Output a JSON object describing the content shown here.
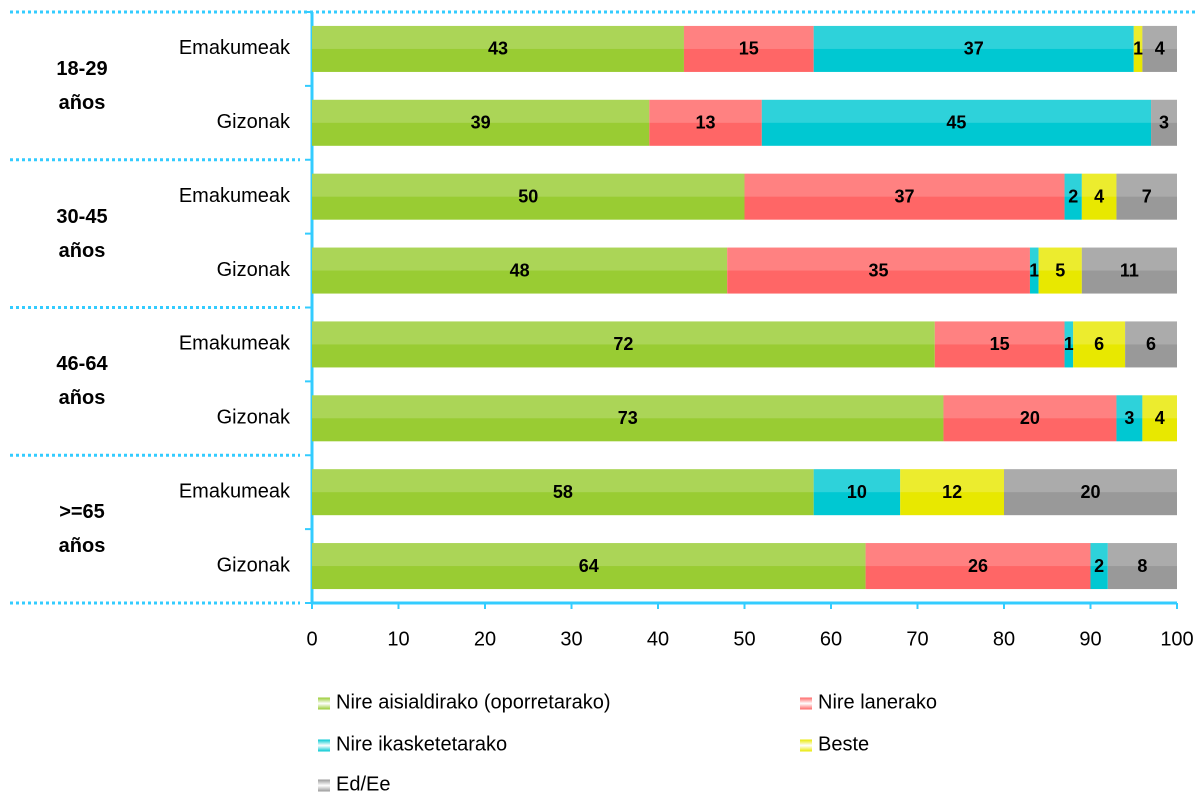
{
  "chart_data": {
    "type": "stacked-barh",
    "groups": [
      "18-29 años",
      "30-45 años",
      "46-64 años",
      ">=65 años"
    ],
    "categories": [
      "Emakumeak",
      "Gizonak",
      "Emakumeak",
      "Gizonak",
      "Emakumeak",
      "Gizonak",
      "Emakumeak",
      "Gizonak"
    ],
    "series": [
      {
        "name": "Nire aisialdirako (oporretarako)",
        "color": "#99cc33",
        "values": [
          43,
          39,
          50,
          48,
          72,
          73,
          58,
          64
        ]
      },
      {
        "name": "Nire lanerako",
        "color": "#ff6666",
        "values": [
          15,
          13,
          37,
          35,
          15,
          20,
          null,
          26
        ]
      },
      {
        "name": "Nire ikasketetarako",
        "color": "#00c8d2",
        "values": [
          37,
          45,
          2,
          1,
          1,
          3,
          10,
          2
        ]
      },
      {
        "name": "Beste",
        "color": "#e8e800",
        "values": [
          1,
          null,
          4,
          5,
          6,
          4,
          12,
          null
        ]
      },
      {
        "name": "Ed/Ee",
        "color": "#999999",
        "values": [
          4,
          3,
          7,
          11,
          6,
          null,
          20,
          8
        ]
      }
    ],
    "xlim": [
      0,
      100
    ],
    "xticks": [
      0,
      10,
      20,
      30,
      40,
      50,
      60,
      70,
      80,
      90,
      100
    ],
    "axis_color": "#33ccff"
  }
}
